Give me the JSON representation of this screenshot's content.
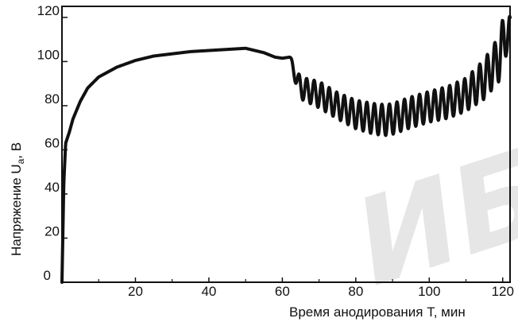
{
  "chart_data": {
    "type": "line",
    "xlabel": "Время анодирования T, мин",
    "ylabel_main": "Напряжение U",
    "ylabel_sub": "a",
    "ylabel_unit": ", В",
    "xlim": [
      0,
      122
    ],
    "ylim": [
      0,
      125
    ],
    "xticks": [
      20,
      40,
      60,
      80,
      100,
      120
    ],
    "yticks": [
      0,
      20,
      40,
      60,
      80,
      100,
      120
    ],
    "grid": false,
    "legend": "none",
    "line_color": "#111111",
    "watermark": "ИБ",
    "series": [
      {
        "envelope_x": [
          0,
          0.5,
          1,
          2,
          3,
          5,
          7,
          10,
          15,
          20,
          25,
          30,
          35,
          40,
          45,
          50,
          55,
          58,
          60,
          62,
          63,
          65,
          70,
          75,
          80,
          85,
          88,
          90,
          95,
          100,
          105,
          110,
          115,
          118,
          120,
          121,
          122
        ],
        "envelope_y": [
          0,
          45,
          63,
          68,
          74,
          82,
          88,
          93,
          97.5,
          100.5,
          102.5,
          103.5,
          104.5,
          105,
          105.5,
          106,
          104,
          102,
          101.5,
          102,
          96,
          88,
          85,
          80,
          76,
          74,
          73.5,
          74,
          77,
          79.5,
          81.5,
          85,
          92,
          99,
          106,
          115,
          110
        ],
        "oscillation_start": 62,
        "oscillation_period": 2.05,
        "amplitude_x": [
          62,
          65,
          70,
          75,
          80,
          85,
          90,
          100,
          110,
          115,
          118,
          120,
          122
        ],
        "amplitude_y": [
          1.5,
          5,
          6,
          6,
          6.5,
          7,
          7,
          7,
          7.5,
          9,
          10,
          13,
          10
        ]
      }
    ]
  }
}
